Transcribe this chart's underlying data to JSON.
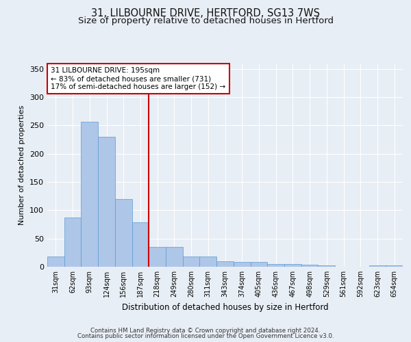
{
  "title_line1": "31, LILBOURNE DRIVE, HERTFORD, SG13 7WS",
  "title_line2": "Size of property relative to detached houses in Hertford",
  "xlabel": "Distribution of detached houses by size in Hertford",
  "ylabel": "Number of detached properties",
  "categories": [
    "31sqm",
    "62sqm",
    "93sqm",
    "124sqm",
    "156sqm",
    "187sqm",
    "218sqm",
    "249sqm",
    "280sqm",
    "311sqm",
    "343sqm",
    "374sqm",
    "405sqm",
    "436sqm",
    "467sqm",
    "498sqm",
    "529sqm",
    "561sqm",
    "592sqm",
    "623sqm",
    "654sqm"
  ],
  "values": [
    18,
    87,
    257,
    230,
    120,
    79,
    35,
    35,
    18,
    18,
    10,
    8,
    8,
    5,
    5,
    4,
    3,
    0,
    0,
    3,
    3
  ],
  "bar_color": "#aec6e8",
  "bar_edge_color": "#5b9bd5",
  "vline_x": 5.5,
  "vline_color": "#cc0000",
  "annotation_text": "31 LILBOURNE DRIVE: 195sqm\n← 83% of detached houses are smaller (731)\n17% of semi-detached houses are larger (152) →",
  "annotation_box_color": "#ffffff",
  "annotation_box_edge": "#cc0000",
  "footnote_line1": "Contains HM Land Registry data © Crown copyright and database right 2024.",
  "footnote_line2": "Contains public sector information licensed under the Open Government Licence v3.0.",
  "ylim": [
    0,
    360
  ],
  "yticks": [
    0,
    50,
    100,
    150,
    200,
    250,
    300,
    350
  ],
  "background_color": "#e8eef5",
  "plot_background": "#e8eef5",
  "grid_color": "#ffffff",
  "title_fontsize": 10.5,
  "subtitle_fontsize": 9.5
}
